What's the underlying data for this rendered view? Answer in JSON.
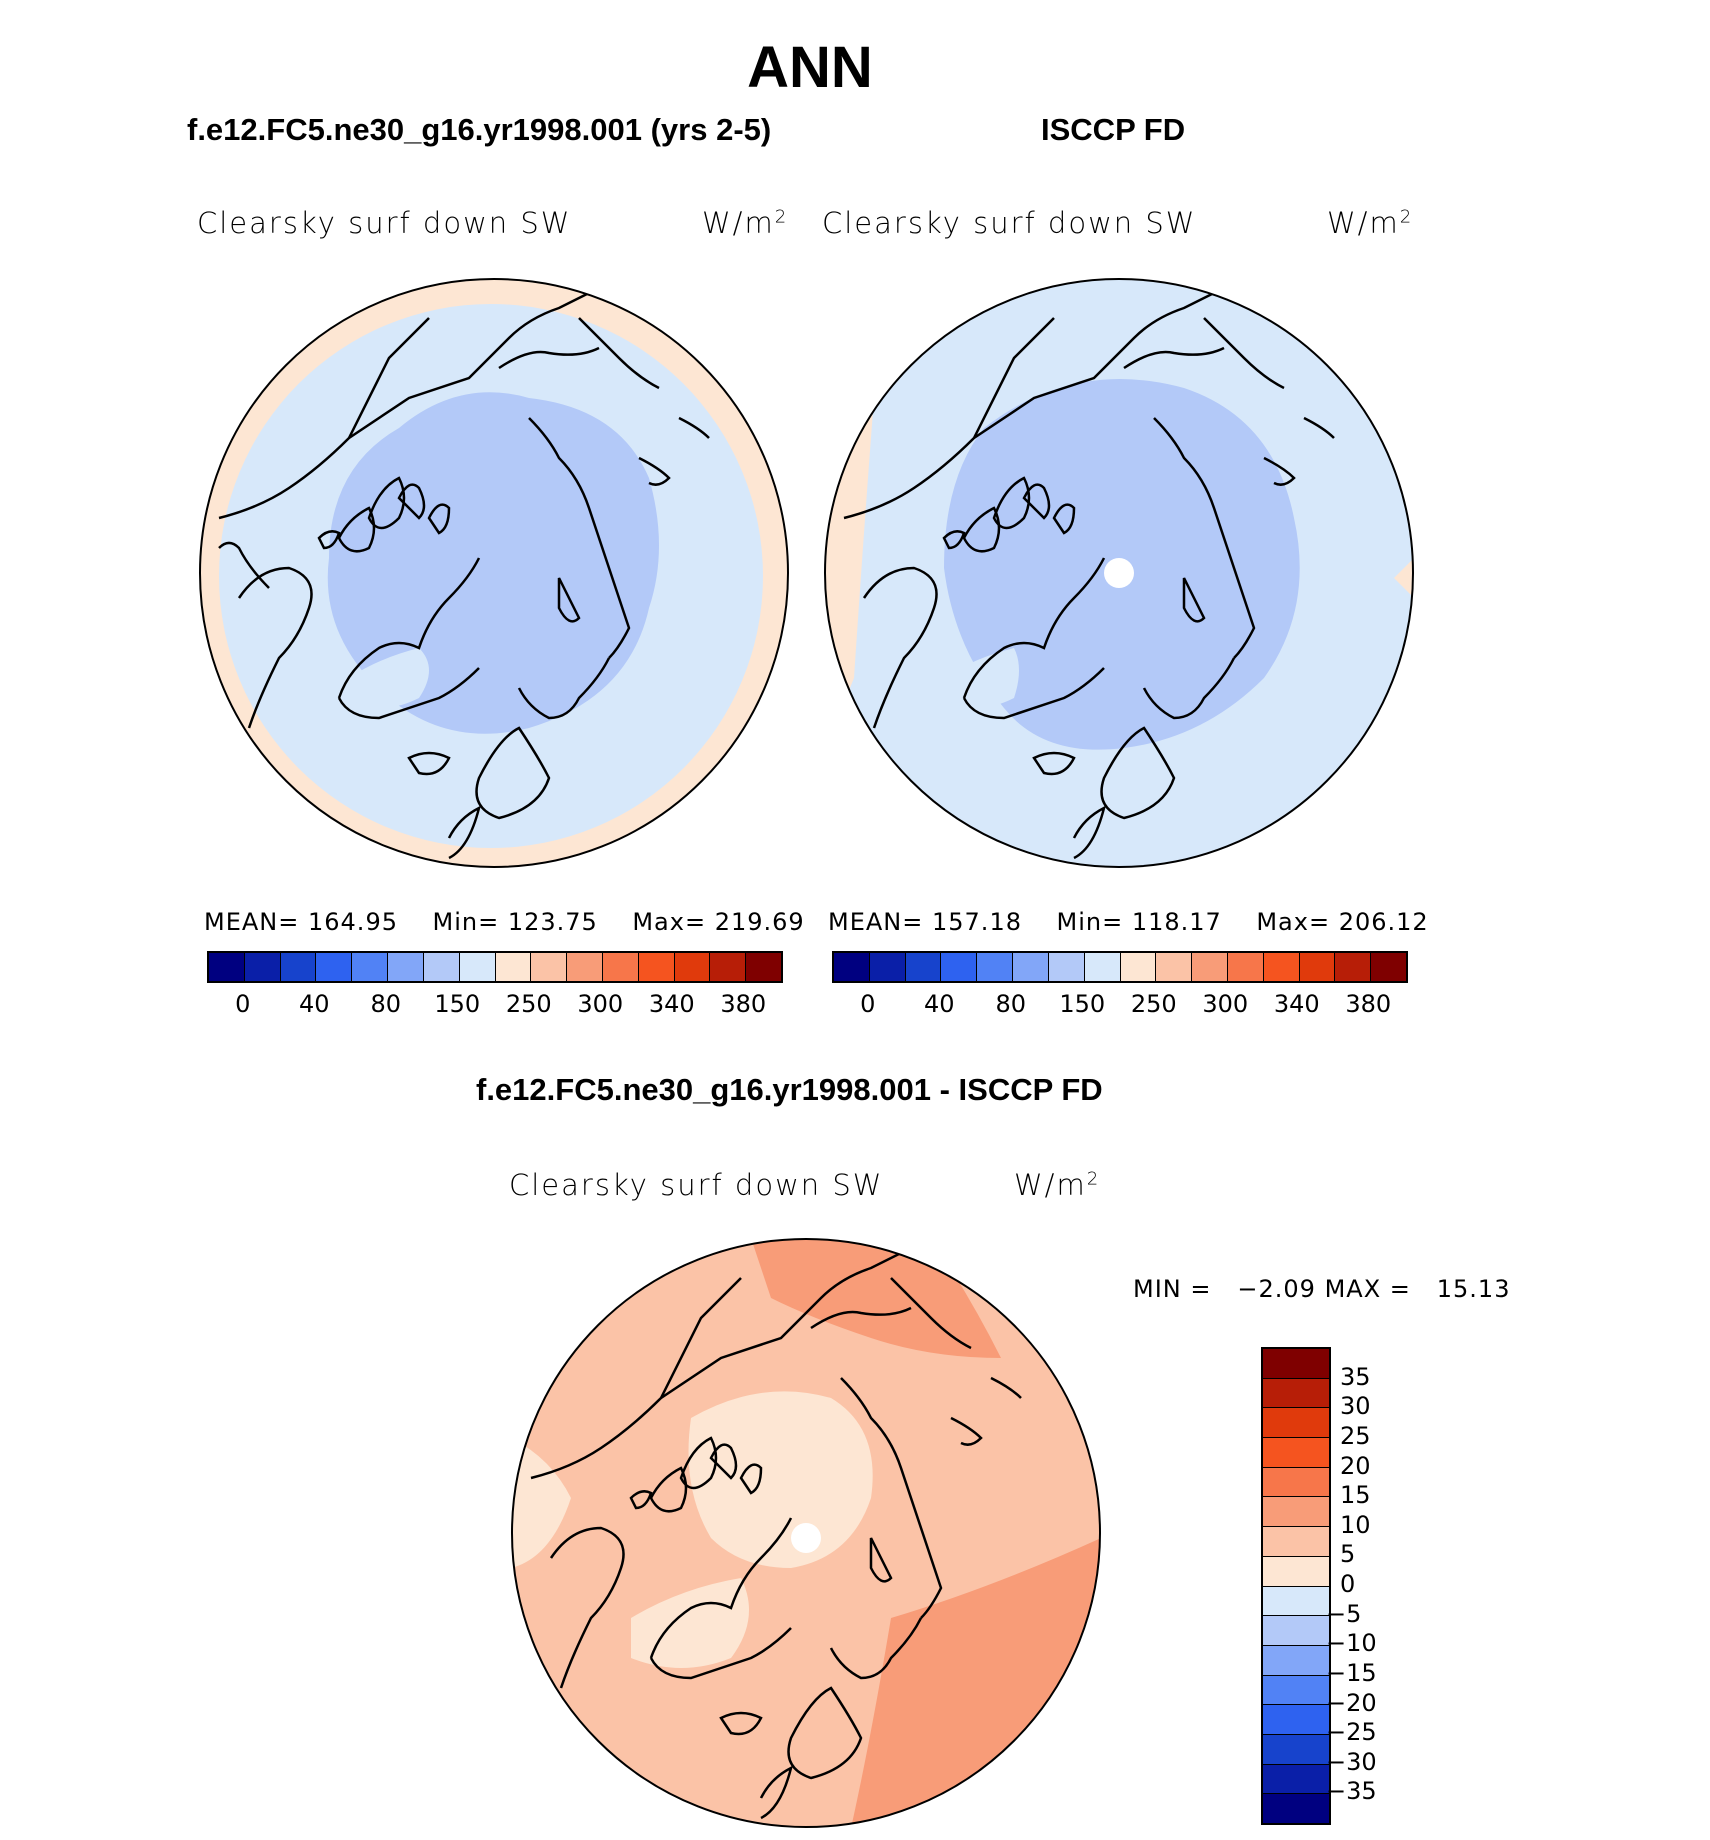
{
  "title": "ANN",
  "panels": [
    {
      "title": "f.e12.FC5.ne30_g16.yr1998.001 (yrs 2-5)",
      "variable": "Clearsky surf down SW",
      "units": "W/m",
      "units_sup": "2",
      "stats": {
        "mean_label": "MEAN=",
        "mean": "164.95",
        "min_label": "Min=",
        "min": "123.75",
        "max_label": "Max=",
        "max": "219.69"
      }
    },
    {
      "title": "ISCCP FD",
      "variable": "Clearsky surf down SW",
      "units": "W/m",
      "units_sup": "2",
      "stats": {
        "mean_label": "MEAN=",
        "mean": "157.18",
        "min_label": "Min=",
        "min": "118.17",
        "max_label": "Max=",
        "max": "206.12"
      }
    }
  ],
  "top_colorbar": {
    "colors": [
      "#000080",
      "#0a1fa8",
      "#1743cc",
      "#2e62f0",
      "#5182f5",
      "#82a6f8",
      "#b3c9f8",
      "#d7e8fa",
      "#fde6d3",
      "#fbc3a7",
      "#f89c78",
      "#f7764a",
      "#f5541f",
      "#e03a0c",
      "#b71e07",
      "#7f0000"
    ],
    "ticks": [
      "0",
      "40",
      "80",
      "150",
      "250",
      "300",
      "340",
      "380"
    ]
  },
  "diff_panel": {
    "title": "f.e12.FC5.ne30_g16.yr1998.001 - ISCCP FD",
    "variable": "Clearsky surf down SW",
    "units": "W/m",
    "units_sup": "2",
    "minmax": {
      "min_label": "MIN =",
      "min": "−2.09",
      "max_label": "MAX =",
      "max": "15.13"
    }
  },
  "diff_colorbar": {
    "colors_top_to_bottom": [
      "#7f0000",
      "#b71e07",
      "#e03a0c",
      "#f5541f",
      "#f7764a",
      "#f89c78",
      "#fbc3a7",
      "#fde6d3",
      "#d7e8fa",
      "#b3c9f8",
      "#82a6f8",
      "#5182f5",
      "#2e62f0",
      "#1743cc",
      "#0a1fa8",
      "#000080"
    ],
    "ticks": [
      "35",
      "30",
      "25",
      "20",
      "15",
      "10",
      "5",
      "0",
      "−5",
      "−10",
      "−15",
      "−20",
      "−25",
      "−30",
      "−35"
    ]
  },
  "colors": {
    "light_blue": "#d7e8fa",
    "mid_blue": "#b3c9f8",
    "light_peach": "#fde6d3",
    "peach": "#fbc3a7",
    "salmon": "#f89c78"
  }
}
